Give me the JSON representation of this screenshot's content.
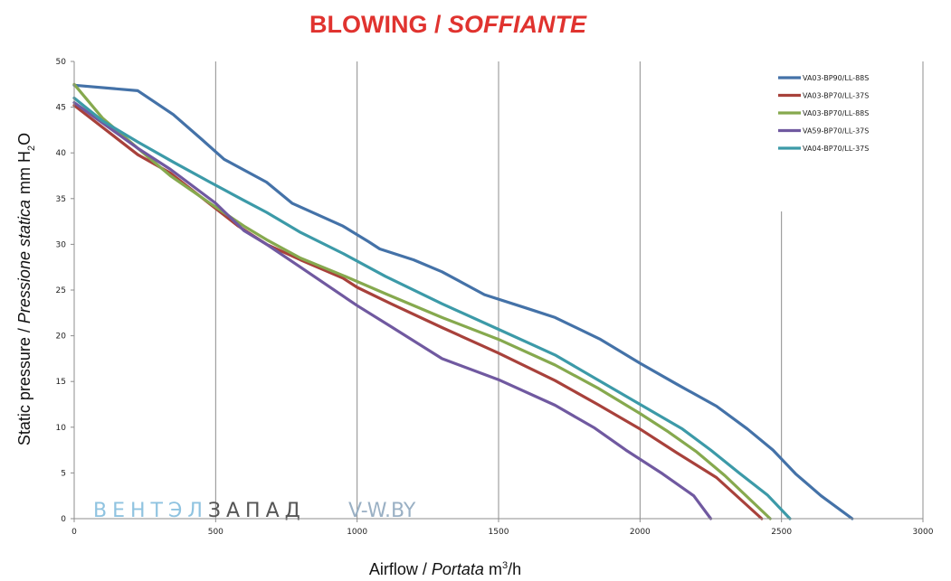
{
  "chart_data": {
    "type": "line",
    "title": {
      "regular": "BLOWING / ",
      "italic": "SOFFIANTE"
    },
    "xlabel": {
      "regular": "Airflow / ",
      "italic": "Portata",
      "unit_pre": "m",
      "unit_sup": "3",
      "unit_post": "/h"
    },
    "ylabel": {
      "regular": "Static pressure / ",
      "italic": "Pressione statica",
      "unit_pre": "mm  H",
      "unit_sub": "2",
      "unit_post": "O"
    },
    "xlim": [
      0,
      3000
    ],
    "ylim": [
      0,
      50
    ],
    "x_ticks": [
      0,
      500,
      1000,
      1500,
      2000,
      2500,
      3000
    ],
    "y_ticks": [
      0,
      5,
      10,
      15,
      20,
      25,
      30,
      35,
      40,
      45,
      50
    ],
    "grid": "vertical",
    "legend_position": "top-right",
    "series": [
      {
        "name": "VA03-BP90/LL-88S",
        "color": "#4472a8",
        "points": [
          [
            0,
            47.4
          ],
          [
            225,
            46.8
          ],
          [
            350,
            44.2
          ],
          [
            450,
            41.5
          ],
          [
            530,
            39.3
          ],
          [
            680,
            36.8
          ],
          [
            770,
            34.5
          ],
          [
            950,
            32.0
          ],
          [
            1040,
            30.3
          ],
          [
            1080,
            29.5
          ],
          [
            1200,
            28.3
          ],
          [
            1300,
            27.0
          ],
          [
            1450,
            24.5
          ],
          [
            1600,
            23.0
          ],
          [
            1700,
            22.0
          ],
          [
            1860,
            19.6
          ],
          [
            2000,
            17.0
          ],
          [
            2130,
            14.7
          ],
          [
            2270,
            12.3
          ],
          [
            2380,
            9.8
          ],
          [
            2470,
            7.5
          ],
          [
            2550,
            4.9
          ],
          [
            2640,
            2.5
          ],
          [
            2750,
            0
          ]
        ]
      },
      {
        "name": "VA03-BP70/LL-37S",
        "color": "#a8413b",
        "points": [
          [
            0,
            45.2
          ],
          [
            225,
            39.8
          ],
          [
            340,
            37.8
          ],
          [
            480,
            34.4
          ],
          [
            580,
            32.0
          ],
          [
            680,
            30.0
          ],
          [
            800,
            28.3
          ],
          [
            950,
            26.3
          ],
          [
            1000,
            25.3
          ],
          [
            1120,
            23.5
          ],
          [
            1300,
            20.9
          ],
          [
            1500,
            18.1
          ],
          [
            1700,
            15.1
          ],
          [
            1850,
            12.5
          ],
          [
            2000,
            9.8
          ],
          [
            2130,
            7.2
          ],
          [
            2270,
            4.5
          ],
          [
            2430,
            0
          ]
        ]
      },
      {
        "name": "VA03-BP70/LL-88S",
        "color": "#86a94e",
        "points": [
          [
            0,
            47.5
          ],
          [
            100,
            43.8
          ],
          [
            225,
            40.5
          ],
          [
            340,
            37.5
          ],
          [
            480,
            34.5
          ],
          [
            600,
            32.0
          ],
          [
            680,
            30.5
          ],
          [
            800,
            28.5
          ],
          [
            950,
            26.6
          ],
          [
            1100,
            24.6
          ],
          [
            1300,
            22.0
          ],
          [
            1500,
            19.6
          ],
          [
            1700,
            16.8
          ],
          [
            1850,
            14.3
          ],
          [
            2000,
            11.5
          ],
          [
            2100,
            9.5
          ],
          [
            2200,
            7.3
          ],
          [
            2300,
            4.7
          ],
          [
            2460,
            0
          ]
        ]
      },
      {
        "name": "VA59-BP70/LL-37S",
        "color": "#7059a0",
        "points": [
          [
            0,
            45.5
          ],
          [
            225,
            40.5
          ],
          [
            340,
            38.2
          ],
          [
            500,
            34.5
          ],
          [
            600,
            31.5
          ],
          [
            680,
            30.0
          ],
          [
            800,
            27.5
          ],
          [
            1000,
            23.3
          ],
          [
            1120,
            21.0
          ],
          [
            1300,
            17.5
          ],
          [
            1500,
            15.2
          ],
          [
            1700,
            12.4
          ],
          [
            1840,
            9.9
          ],
          [
            1950,
            7.5
          ],
          [
            2080,
            4.9
          ],
          [
            2190,
            2.5
          ],
          [
            2250,
            0
          ]
        ]
      },
      {
        "name": "VA04-BP70/LL-37S",
        "color": "#3c9aa8",
        "points": [
          [
            0,
            46.0
          ],
          [
            100,
            43.5
          ],
          [
            225,
            41.2
          ],
          [
            350,
            39.0
          ],
          [
            480,
            36.8
          ],
          [
            600,
            34.8
          ],
          [
            680,
            33.5
          ],
          [
            800,
            31.3
          ],
          [
            950,
            29.0
          ],
          [
            1100,
            26.5
          ],
          [
            1300,
            23.5
          ],
          [
            1500,
            20.7
          ],
          [
            1700,
            17.9
          ],
          [
            1850,
            15.2
          ],
          [
            2000,
            12.5
          ],
          [
            2150,
            9.8
          ],
          [
            2250,
            7.5
          ],
          [
            2350,
            5.0
          ],
          [
            2450,
            2.6
          ],
          [
            2530,
            0
          ]
        ]
      }
    ]
  },
  "watermark": {
    "text1a": "ВЕНТЭЛ",
    "text1b": "ЗАПАД",
    "text2": "V-W.BY"
  }
}
